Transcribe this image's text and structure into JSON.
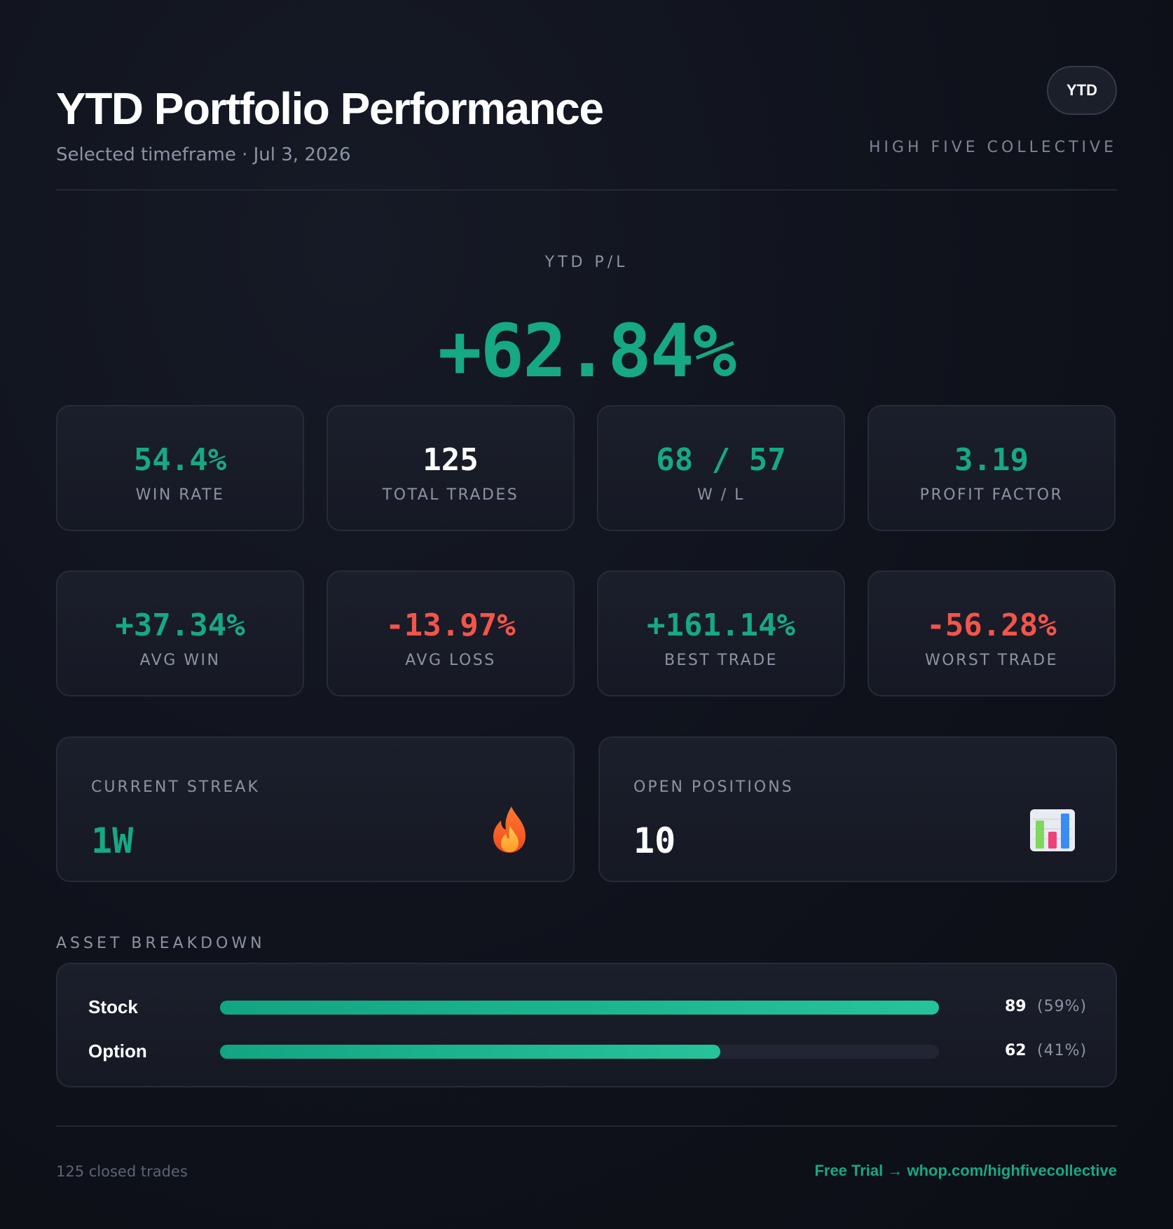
{
  "header": {
    "title": "YTD Portfolio Performance",
    "subtitle": "Selected timeframe · Jul 3, 2026",
    "badge": "YTD",
    "brand": "HIGH FIVE COLLECTIVE"
  },
  "hero": {
    "label": "YTD P/L",
    "value": "+62.84%"
  },
  "stats_row1": [
    {
      "value": "54.4%",
      "label": "WIN RATE",
      "tone": "green"
    },
    {
      "value": "125",
      "label": "TOTAL TRADES",
      "tone": "white"
    },
    {
      "value": "68 / 57",
      "label": "W / L",
      "tone": "green"
    },
    {
      "value": "3.19",
      "label": "PROFIT FACTOR",
      "tone": "green"
    }
  ],
  "stats_row2": [
    {
      "value": "+37.34%",
      "label": "AVG WIN",
      "tone": "green"
    },
    {
      "value": "-13.97%",
      "label": "AVG LOSS",
      "tone": "red"
    },
    {
      "value": "+161.14%",
      "label": "BEST TRADE",
      "tone": "green"
    },
    {
      "value": "-56.28%",
      "label": "WORST TRADE",
      "tone": "red"
    }
  ],
  "streak": {
    "label": "CURRENT STREAK",
    "value": "1W",
    "icon": "flame-icon"
  },
  "open_positions": {
    "label": "OPEN POSITIONS",
    "value": "10",
    "icon": "bar-chart-icon"
  },
  "asset_breakdown": {
    "label": "ASSET BREAKDOWN",
    "items": [
      {
        "name": "Stock",
        "count": "89",
        "percent": "(59%)",
        "fill": 1.0
      },
      {
        "name": "Option",
        "count": "62",
        "percent": "(41%)",
        "fill": 0.696
      }
    ]
  },
  "footer": {
    "left": "125 closed trades",
    "right": "Free Trial → whop.com/highfivecollective"
  },
  "colors": {
    "positive": "#17a884",
    "negative": "#f2554a",
    "background": "#0f121b"
  }
}
